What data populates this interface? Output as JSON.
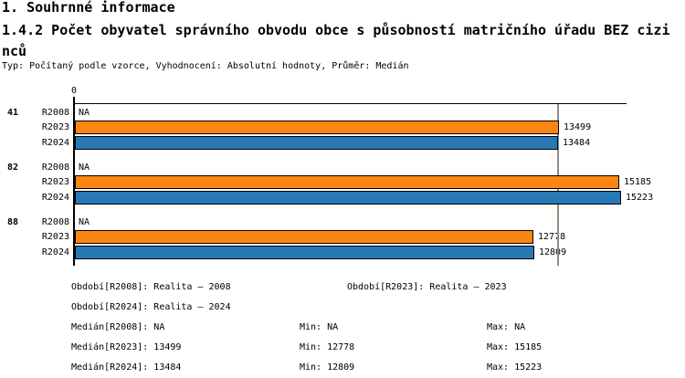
{
  "header": {
    "title": "1. Souhrnné informace",
    "subtitle": "1.4.2 Počet obyvatel správního obvodu obce s působností matričního úřadu BEZ cizinců",
    "meta": "Typ: Počítaný podle vzorce, Vyhodnocení: Absolutní hodnoty, Průměr: Medián"
  },
  "chart_data": {
    "type": "bar",
    "orientation": "horizontal",
    "title": "1.4.2 Počet obyvatel správního obvodu obce s působností matričního úřadu BEZ cizinců",
    "value_axis": {
      "origin_label": "0",
      "min": 0,
      "max": 15409
    },
    "categories": [
      "41",
      "82",
      "88"
    ],
    "series": [
      {
        "name": "R2008",
        "color": null,
        "values": [
          null,
          null,
          null
        ],
        "display": [
          "NA",
          "NA",
          "NA"
        ]
      },
      {
        "name": "R2023",
        "color": "#FB8512",
        "values": [
          13499,
          15185,
          12778
        ],
        "display": [
          "13499",
          "15185",
          "12778"
        ]
      },
      {
        "name": "R2024",
        "color": "#2878B4",
        "values": [
          13484,
          15223,
          12809
        ],
        "display": [
          "13484",
          "15223",
          "12809"
        ]
      }
    ],
    "median_lines": [
      {
        "series": "R2023",
        "value": 13499,
        "color": "#E08030"
      },
      {
        "series": "R2024",
        "value": 13484,
        "color": "#5095C9"
      }
    ],
    "bar_border_color": "#000000",
    "grid": false,
    "legend_position": "none"
  },
  "stats": {
    "periods": [
      "Období[R2008]: Realita – 2008",
      "Období[R2023]: Realita – 2023",
      "Období[R2024]: Realita – 2024"
    ],
    "rows": [
      {
        "median": "Medián[R2008]: NA",
        "min": "Min: NA",
        "max": "Max: NA"
      },
      {
        "median": "Medián[R2023]: 13499",
        "min": "Min: 12778",
        "max": "Max: 15185"
      },
      {
        "median": "Medián[R2024]: 13484",
        "min": "Min: 12809",
        "max": "Max: 15223"
      }
    ]
  }
}
